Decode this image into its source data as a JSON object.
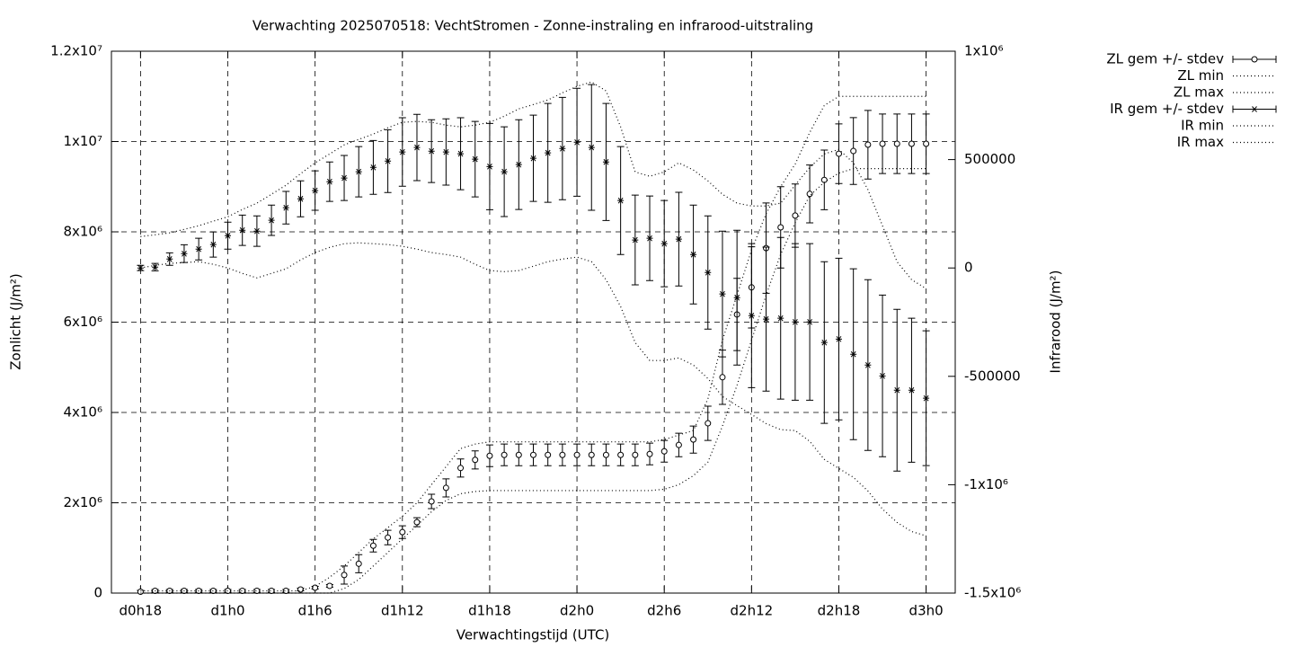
{
  "chart_data": {
    "type": "errorbar-line",
    "title": "Verwachting 2025070518: VechtStromen - Zonne-instraling en infrarood-uitstraling",
    "x_label": "Verwachtingstijd (UTC)",
    "y_label": "Zonlicht (J/m²)",
    "y2_label": "Infrarood (J/m²)",
    "grid": true,
    "legend": "outside-right",
    "xlim": [
      16,
      74
    ],
    "xticks": [
      {
        "value": 18,
        "label": "d0h18"
      },
      {
        "value": 24,
        "label": "d1h0"
      },
      {
        "value": 30,
        "label": "d1h6"
      },
      {
        "value": 36,
        "label": "d1h12"
      },
      {
        "value": 42,
        "label": "d1h18"
      },
      {
        "value": 48,
        "label": "d2h0"
      },
      {
        "value": 54,
        "label": "d2h6"
      },
      {
        "value": 60,
        "label": "d2h12"
      },
      {
        "value": 66,
        "label": "d2h18"
      },
      {
        "value": 72,
        "label": "d3h0"
      }
    ],
    "ylim": [
      0,
      12000000
    ],
    "yticks": [
      0,
      {
        "value": 2000000,
        "label": "2x10⁶"
      },
      {
        "value": 4000000,
        "label": "4x10⁶"
      },
      {
        "value": 6000000,
        "label": "6x10⁶"
      },
      {
        "value": 8000000,
        "label": "8x10⁶"
      },
      {
        "value": 10000000,
        "label": "1x10⁷"
      },
      {
        "value": 12000000,
        "label": "1.2x10⁷"
      }
    ],
    "y2lim": [
      -1500000,
      1000000
    ],
    "y2ticks": [
      {
        "value": -1500000,
        "label": "-1.5x10⁶"
      },
      {
        "value": -1000000,
        "label": "-1x10⁶"
      },
      -500000,
      0,
      500000,
      {
        "value": 1000000,
        "label": "1x10⁶"
      }
    ],
    "x": [
      18,
      19,
      20,
      21,
      22,
      23,
      24,
      25,
      26,
      27,
      28,
      29,
      30,
      31,
      32,
      33,
      34,
      35,
      36,
      37,
      38,
      39,
      40,
      41,
      42,
      43,
      44,
      45,
      46,
      47,
      48,
      49,
      50,
      51,
      52,
      53,
      54,
      55,
      56,
      57,
      58,
      59,
      60,
      61,
      62,
      63,
      64,
      65,
      66,
      67,
      68,
      69,
      70,
      71,
      72
    ],
    "series": [
      {
        "name": "ZL gem +/- stdev",
        "color": "#000000",
        "style": "errorbars",
        "marker": "circle",
        "axis": "y",
        "values": [
          30000,
          50000,
          50000,
          50000,
          50000,
          50000,
          50000,
          50000,
          50000,
          50000,
          50000,
          80000,
          120000,
          160000,
          400000,
          650000,
          1050000,
          1230000,
          1350000,
          1570000,
          2030000,
          2330000,
          2770000,
          2950000,
          3040000,
          3060000,
          3060000,
          3060000,
          3060000,
          3060000,
          3060000,
          3060000,
          3060000,
          3060000,
          3060000,
          3080000,
          3140000,
          3280000,
          3400000,
          3760000,
          4780000,
          6170000,
          6770000,
          7640000,
          8100000,
          8360000,
          8840000,
          9150000,
          9730000,
          9790000,
          9930000,
          9950000,
          9950000,
          9950000,
          9950000
        ],
        "errors": [
          30000,
          30000,
          30000,
          30000,
          30000,
          30000,
          30000,
          30000,
          30000,
          30000,
          30000,
          30000,
          30000,
          30000,
          200000,
          200000,
          140000,
          160000,
          140000,
          100000,
          160000,
          200000,
          200000,
          200000,
          240000,
          240000,
          240000,
          240000,
          240000,
          240000,
          240000,
          240000,
          240000,
          240000,
          240000,
          240000,
          240000,
          260000,
          300000,
          380000,
          600000,
          800000,
          900000,
          1000000,
          900000,
          700000,
          640000,
          660000,
          660000,
          740000,
          760000,
          660000,
          660000,
          660000,
          660000
        ]
      },
      {
        "name": "ZL min",
        "color": "#000000",
        "style": "dotted",
        "axis": "y",
        "values": [
          0,
          0,
          0,
          0,
          0,
          0,
          0,
          0,
          0,
          0,
          0,
          0,
          0,
          0,
          100000,
          300000,
          600000,
          900000,
          1200000,
          1500000,
          1800000,
          2050000,
          2200000,
          2250000,
          2270000,
          2270000,
          2270000,
          2270000,
          2270000,
          2270000,
          2270000,
          2270000,
          2270000,
          2270000,
          2270000,
          2270000,
          2300000,
          2400000,
          2600000,
          2900000,
          3700000,
          4600000,
          5600000,
          6600000,
          7500000,
          8200000,
          8800000,
          9100000,
          9300000,
          9400000,
          9400000,
          9400000,
          9400000,
          9400000,
          9400000
        ]
      },
      {
        "name": "ZL max",
        "color": "#000000",
        "style": "dotted",
        "axis": "y",
        "values": [
          50000,
          50000,
          50000,
          50000,
          50000,
          50000,
          50000,
          50000,
          50000,
          50000,
          50000,
          50000,
          150000,
          350000,
          600000,
          900000,
          1200000,
          1450000,
          1700000,
          2000000,
          2400000,
          2800000,
          3200000,
          3300000,
          3350000,
          3350000,
          3350000,
          3350000,
          3350000,
          3350000,
          3350000,
          3350000,
          3350000,
          3350000,
          3350000,
          3350000,
          3400000,
          3500000,
          3600000,
          4300000,
          5600000,
          6600000,
          7600000,
          8400000,
          9000000,
          9500000,
          10200000,
          10800000,
          11000000,
          11000000,
          11000000,
          11000000,
          11000000,
          11000000,
          11000000
        ]
      },
      {
        "name": "IR gem +/- stdev",
        "color": "#000000",
        "style": "errorbars",
        "marker": "asterisk",
        "axis": "y2",
        "values": [
          0,
          4000,
          41000,
          66000,
          87000,
          108000,
          149000,
          174000,
          170000,
          220000,
          278000,
          319000,
          357000,
          398000,
          415000,
          444000,
          464000,
          493000,
          535000,
          556000,
          539000,
          535000,
          527000,
          502000,
          468000,
          444000,
          477000,
          506000,
          531000,
          551000,
          580000,
          556000,
          489000,
          311000,
          129000,
          137000,
          112000,
          133000,
          62000,
          -21000,
          -120000,
          -137000,
          -220000,
          -236000,
          -232000,
          -249000,
          -249000,
          -344000,
          -328000,
          -398000,
          -448000,
          -498000,
          -564000,
          -564000,
          -601000
        ],
        "errors": [
          12000,
          17000,
          29000,
          41000,
          50000,
          58000,
          62000,
          70000,
          70000,
          70000,
          75000,
          83000,
          91000,
          91000,
          104000,
          116000,
          124000,
          145000,
          158000,
          153000,
          145000,
          153000,
          166000,
          174000,
          199000,
          207000,
          207000,
          199000,
          228000,
          236000,
          249000,
          290000,
          270000,
          249000,
          207000,
          195000,
          199000,
          216000,
          228000,
          261000,
          290000,
          311000,
          332000,
          332000,
          373000,
          361000,
          361000,
          373000,
          373000,
          394000,
          394000,
          373000,
          373000,
          332000,
          311000
        ]
      },
      {
        "name": "IR min",
        "color": "#000000",
        "style": "dotted",
        "axis": "y2",
        "values": [
          0,
          12000,
          21000,
          25000,
          29000,
          17000,
          0,
          -25000,
          -46000,
          -25000,
          -4000,
          37000,
          71000,
          95000,
          112000,
          116000,
          112000,
          108000,
          100000,
          87000,
          71000,
          62000,
          50000,
          17000,
          -12000,
          -17000,
          -12000,
          8000,
          29000,
          41000,
          50000,
          29000,
          -54000,
          -178000,
          -344000,
          -427000,
          -427000,
          -415000,
          -448000,
          -510000,
          -593000,
          -635000,
          -676000,
          -718000,
          -746000,
          -750000,
          -800000,
          -883000,
          -925000,
          -966000,
          -1029000,
          -1112000,
          -1174000,
          -1216000,
          -1236000
        ]
      },
      {
        "name": "IR max",
        "color": "#000000",
        "style": "dotted",
        "axis": "y2",
        "values": [
          145000,
          153000,
          162000,
          178000,
          195000,
          216000,
          236000,
          270000,
          299000,
          340000,
          382000,
          435000,
          485000,
          526000,
          568000,
          593000,
          618000,
          647000,
          672000,
          676000,
          672000,
          659000,
          651000,
          659000,
          672000,
          700000,
          734000,
          754000,
          775000,
          808000,
          838000,
          858000,
          817000,
          651000,
          443000,
          423000,
          443000,
          485000,
          452000,
          402000,
          340000,
          299000,
          286000,
          286000,
          299000,
          382000,
          464000,
          526000,
          547000,
          485000,
          361000,
          195000,
          29000,
          -54000,
          -95000
        ]
      }
    ]
  }
}
